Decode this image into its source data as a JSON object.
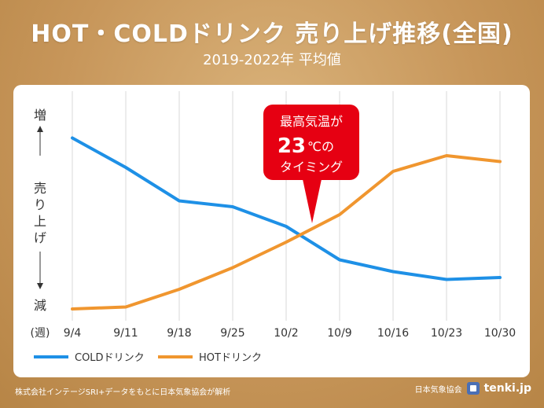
{
  "header": {
    "title": "HOT・COLDドリンク 売り上げ推移(全国)",
    "subtitle": "2019-2022年 平均値"
  },
  "yaxis": {
    "top": "増",
    "bottom": "減",
    "label_chars": [
      "売",
      "り",
      "上",
      "げ"
    ]
  },
  "xaxis_unit": "(週)",
  "callout": {
    "line1": "最高気温が",
    "temp": "23",
    "unit": "℃の",
    "line3": "タイミング",
    "color": "#e60012"
  },
  "chart_data": {
    "type": "line",
    "x": [
      "9/4",
      "9/11",
      "9/18",
      "9/25",
      "10/2",
      "10/9",
      "10/16",
      "10/23",
      "10/30"
    ],
    "ylim": [
      0,
      100
    ],
    "grid": true,
    "legend_position": "bottom-left",
    "series": [
      {
        "name": "COLDドリンク",
        "color": "#1e90e6",
        "values": [
          89,
          74,
          57,
          54,
          44,
          27,
          21,
          17,
          18
        ]
      },
      {
        "name": "HOTドリンク",
        "color": "#f0962f",
        "values": [
          2,
          3,
          12,
          23,
          36,
          50,
          72,
          80,
          77
        ]
      }
    ]
  },
  "footer": {
    "source": "株式会社インテージSRI+データをもとに日本気象協会が解析",
    "jma": "日本気象協会",
    "brand": "tenki.jp"
  }
}
